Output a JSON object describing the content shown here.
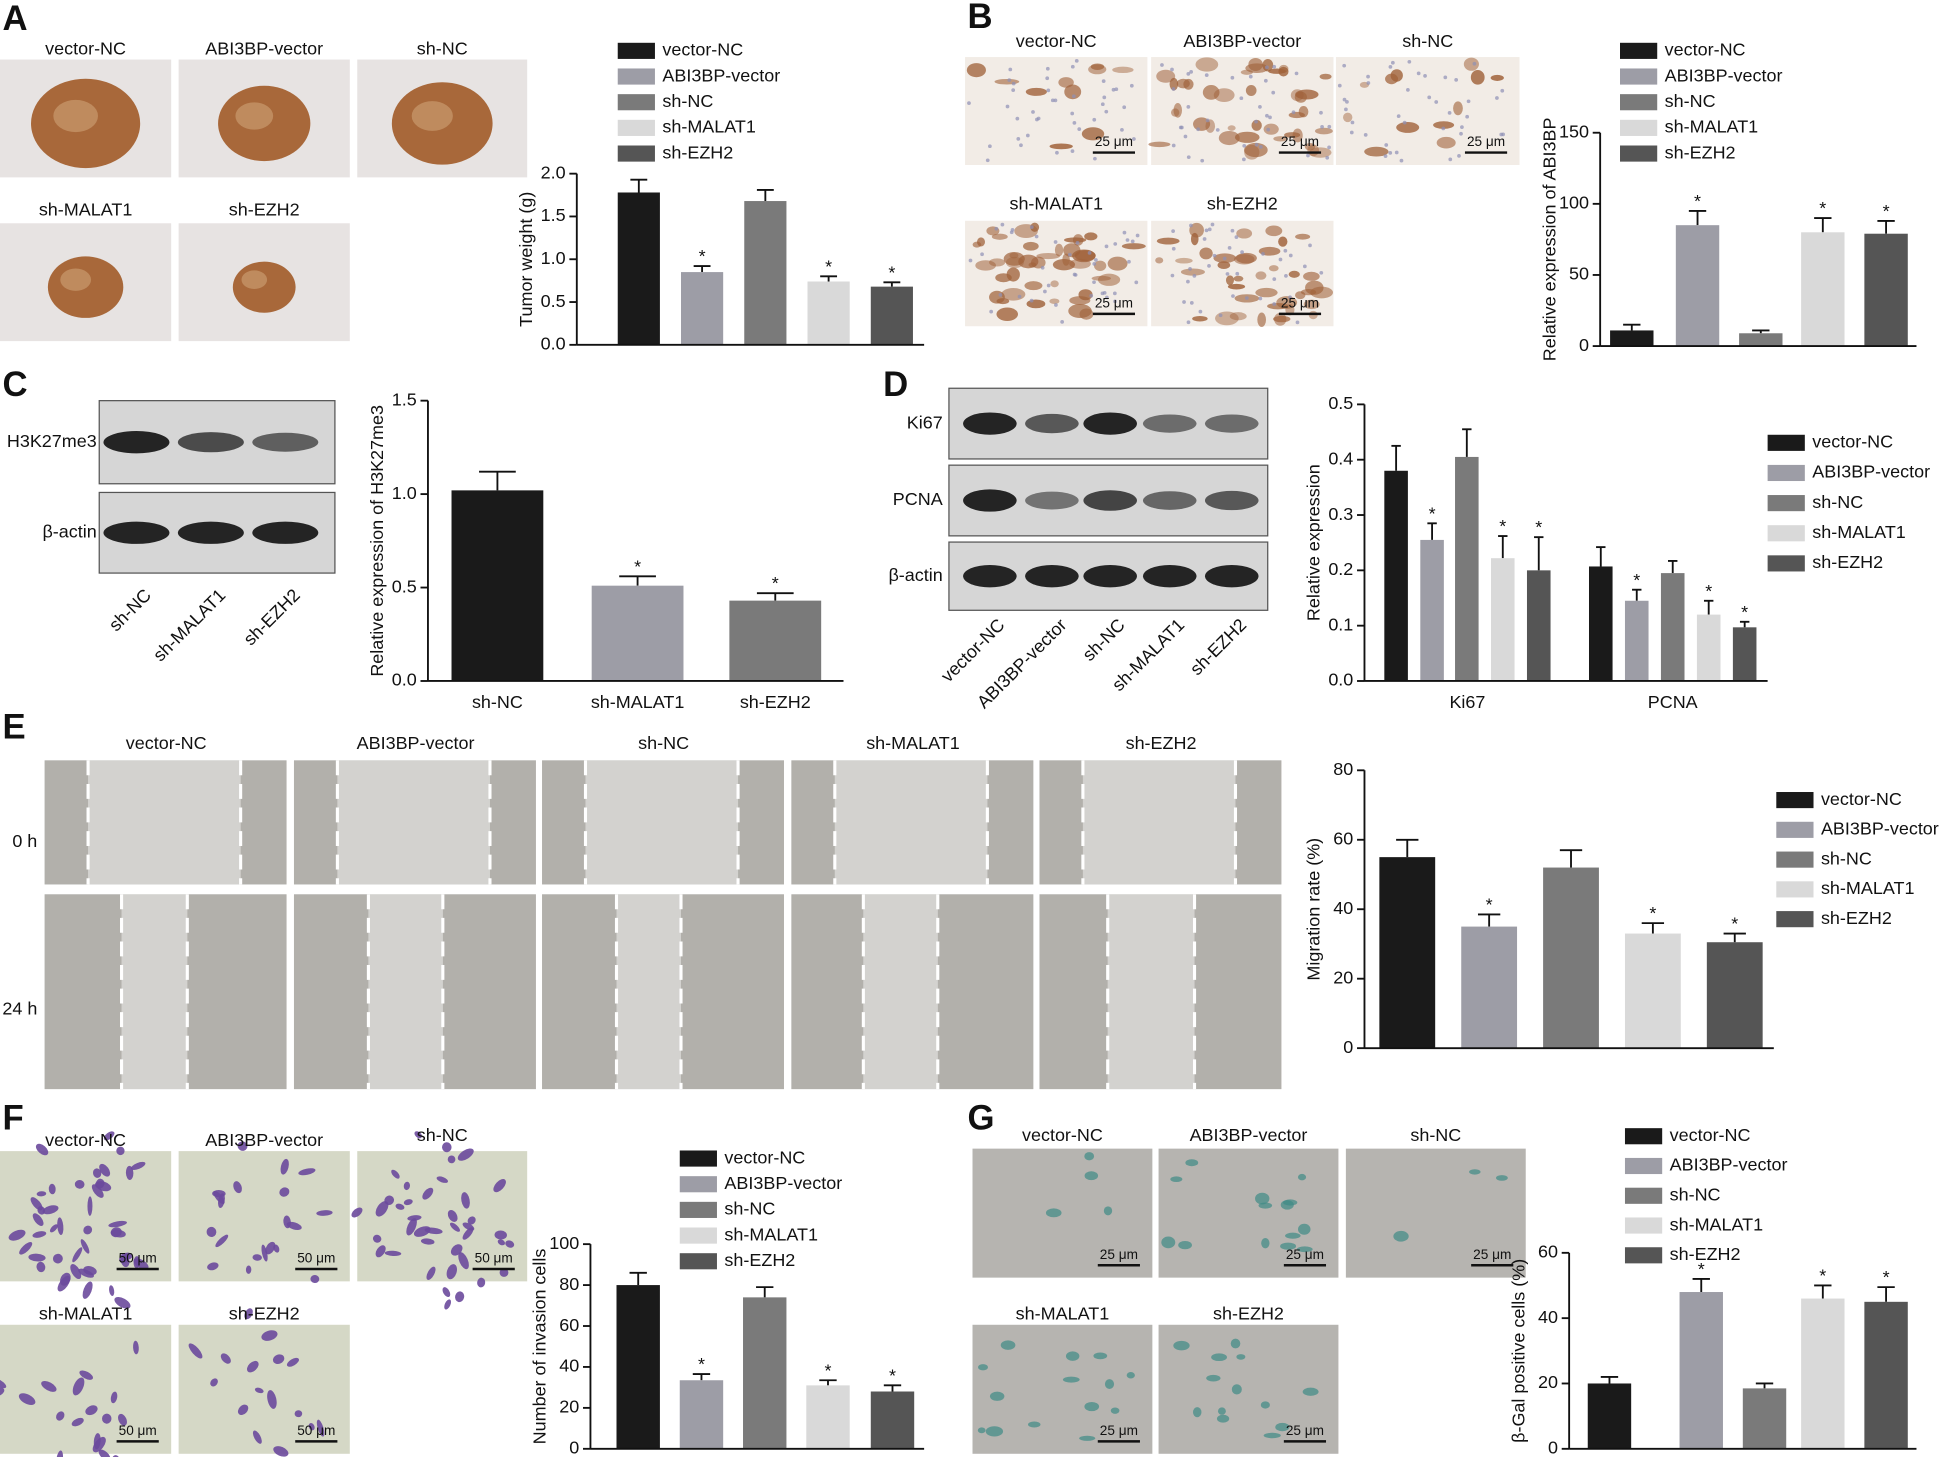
{
  "chart_data": [
    {
      "type": "bar",
      "ylabel": "Tumor weight (g)",
      "legend": "top",
      "categories": [
        "vector-NC",
        "ABI3BP-vector",
        "sh-NC",
        "sh-MALAT1",
        "sh-EZH2"
      ],
      "colors": [
        "#1a1a1a",
        "#9d9da6",
        "#7a7a7a",
        "#d9d9d9",
        "#555555"
      ],
      "values": [
        1.78,
        0.85,
        1.68,
        0.74,
        0.68
      ],
      "errors": [
        0.15,
        0.07,
        0.13,
        0.06,
        0.05
      ],
      "significance": [
        null,
        "*",
        null,
        "*",
        "*"
      ],
      "ylim": [
        0,
        2.0
      ],
      "yticks": [
        {
          "value": 0,
          "label": "0.0"
        },
        {
          "value": 0.5,
          "label": "0.5"
        },
        {
          "value": 1,
          "label": "1.0"
        },
        {
          "value": 1.5,
          "label": "1.5"
        },
        {
          "value": 2,
          "label": "2.0"
        }
      ]
    },
    {
      "type": "bar",
      "ylabel": "Relative expression of ABI3BP",
      "legend": "top",
      "categories": [
        "vector-NC",
        "ABI3BP-vector",
        "sh-NC",
        "sh-MALAT1",
        "sh-EZH2"
      ],
      "colors": [
        "#1a1a1a",
        "#9d9da6",
        "#7a7a7a",
        "#d9d9d9",
        "#555555"
      ],
      "values": [
        11,
        85,
        9,
        80,
        79
      ],
      "errors": [
        4,
        10,
        2,
        10,
        9
      ],
      "significance": [
        null,
        "*",
        null,
        "*",
        "*"
      ],
      "ylim": [
        0,
        150
      ],
      "yticks": [
        0,
        50,
        100,
        150
      ]
    },
    {
      "type": "bar",
      "ylabel": "Relative expression of H3K27me3",
      "categories": [
        "sh-NC",
        "sh-MALAT1",
        "sh-EZH2"
      ],
      "colors": [
        "#1a1a1a",
        "#9d9da6",
        "#7a7a7a"
      ],
      "values": [
        1.02,
        0.51,
        0.43
      ],
      "errors": [
        0.1,
        0.05,
        0.04
      ],
      "significance": [
        null,
        "*",
        "*"
      ],
      "ylim": [
        0,
        1.5
      ],
      "yticks": [
        {
          "value": 0,
          "label": "0.0"
        },
        {
          "value": 0.5,
          "label": "0.5"
        },
        {
          "value": 1,
          "label": "1.0"
        },
        {
          "value": 1.5,
          "label": "1.5"
        }
      ]
    },
    {
      "type": "grouped_bar",
      "ylabel": "Relative expression",
      "legend": "right",
      "categories": [
        "Ki67",
        "PCNA"
      ],
      "series": [
        {
          "name": "vector-NC",
          "color": "#1a1a1a",
          "values": [
            0.38,
            0.207
          ],
          "errors": [
            0.045,
            0.035
          ],
          "significance": [
            null,
            null
          ]
        },
        {
          "name": "ABI3BP-vector",
          "color": "#9d9da6",
          "values": [
            0.255,
            0.145
          ],
          "errors": [
            0.03,
            0.02
          ],
          "significance": [
            "*",
            "*"
          ]
        },
        {
          "name": "sh-NC",
          "color": "#7a7a7a",
          "values": [
            0.405,
            0.195
          ],
          "errors": [
            0.05,
            0.022
          ],
          "significance": [
            null,
            null
          ]
        },
        {
          "name": "sh-MALAT1",
          "color": "#d9d9d9",
          "values": [
            0.222,
            0.12
          ],
          "errors": [
            0.04,
            0.025
          ],
          "significance": [
            "*",
            "*"
          ]
        },
        {
          "name": "sh-EZH2",
          "color": "#555555",
          "values": [
            0.2,
            0.097
          ],
          "errors": [
            0.06,
            0.01
          ],
          "significance": [
            "*",
            "*"
          ]
        }
      ],
      "ylim": [
        0,
        0.5
      ],
      "yticks": [
        {
          "value": 0,
          "label": "0.0"
        },
        0.1,
        0.2,
        0.3,
        0.4,
        0.5
      ]
    },
    {
      "type": "bar",
      "ylabel": "Migration rate (%)",
      "legend": "right",
      "categories": [
        "vector-NC",
        "ABI3BP-vector",
        "sh-NC",
        "sh-MALAT1",
        "sh-EZH2"
      ],
      "colors": [
        "#1a1a1a",
        "#9d9da6",
        "#7a7a7a",
        "#d9d9d9",
        "#555555"
      ],
      "values": [
        55,
        35,
        52,
        33,
        30.5
      ],
      "errors": [
        5,
        3.5,
        5,
        3,
        2.5
      ],
      "significance": [
        null,
        "*",
        null,
        "*",
        "*"
      ],
      "ylim": [
        0,
        80
      ],
      "yticks": [
        0,
        20,
        40,
        60,
        80
      ]
    },
    {
      "type": "bar",
      "ylabel": "Number of invasion cells",
      "legend": "top",
      "categories": [
        "vector-NC",
        "ABI3BP-vector",
        "sh-NC",
        "sh-MALAT1",
        "sh-EZH2"
      ],
      "colors": [
        "#1a1a1a",
        "#9d9da6",
        "#7a7a7a",
        "#d9d9d9",
        "#555555"
      ],
      "values": [
        80,
        33.5,
        74,
        31,
        28
      ],
      "errors": [
        6,
        3,
        5,
        2.5,
        3
      ],
      "significance": [
        null,
        "*",
        null,
        "*",
        "*"
      ],
      "ylim": [
        0,
        100
      ],
      "yticks": [
        0,
        20,
        40,
        60,
        80,
        100
      ]
    },
    {
      "type": "bar",
      "ylabel": "β-Gal positive cells (%)",
      "legend": "top",
      "categories": [
        "vector-NC",
        "ABI3BP-vector",
        "sh-NC",
        "sh-MALAT1",
        "sh-EZH2"
      ],
      "colors": [
        "#1a1a1a",
        "#9d9da6",
        "#7a7a7a",
        "#d9d9d9",
        "#555555"
      ],
      "values": [
        20,
        48,
        18.5,
        46,
        45
      ],
      "errors": [
        2,
        4,
        1.5,
        4,
        4.5
      ],
      "significance": [
        null,
        "*",
        null,
        "*",
        "*"
      ],
      "ylim": [
        0,
        60
      ],
      "yticks": [
        0,
        20,
        40,
        60
      ]
    }
  ],
  "figure": {
    "A": {
      "letter": "A",
      "photos": [
        "vector-NC",
        "ABI3BP-vector",
        "sh-NC",
        "sh-MALAT1",
        "sh-EZH2"
      ]
    },
    "B": {
      "letter": "B",
      "photos": [
        "vector-NC",
        "ABI3BP-vector",
        "sh-NC",
        "sh-MALAT1",
        "sh-EZH2"
      ],
      "scale_bar": "25 μm"
    },
    "C": {
      "letter": "C",
      "blots": [
        "H3K27me3",
        "β-actin"
      ],
      "lanes": [
        "sh-NC",
        "sh-MALAT1",
        "sh-EZH2"
      ]
    },
    "D": {
      "letter": "D",
      "blots": [
        "Ki67",
        "PCNA",
        "β-actin"
      ],
      "lanes": [
        "vector-NC",
        "ABI3BP-vector",
        "sh-NC",
        "sh-MALAT1",
        "sh-EZH2"
      ]
    },
    "E": {
      "letter": "E",
      "photos": [
        "vector-NC",
        "ABI3BP-vector",
        "sh-NC",
        "sh-MALAT1",
        "sh-EZH2"
      ],
      "times": [
        "0 h",
        "24 h"
      ]
    },
    "F": {
      "letter": "F",
      "photos": [
        "vector-NC",
        "ABI3BP-vector",
        "sh-NC",
        "sh-MALAT1",
        "sh-EZH2"
      ],
      "scale_bar": "50 μm"
    },
    "G": {
      "letter": "G",
      "photos": [
        "vector-NC",
        "ABI3BP-vector",
        "sh-NC",
        "sh-MALAT1",
        "sh-EZH2"
      ],
      "scale_bar": "25 μm"
    }
  }
}
